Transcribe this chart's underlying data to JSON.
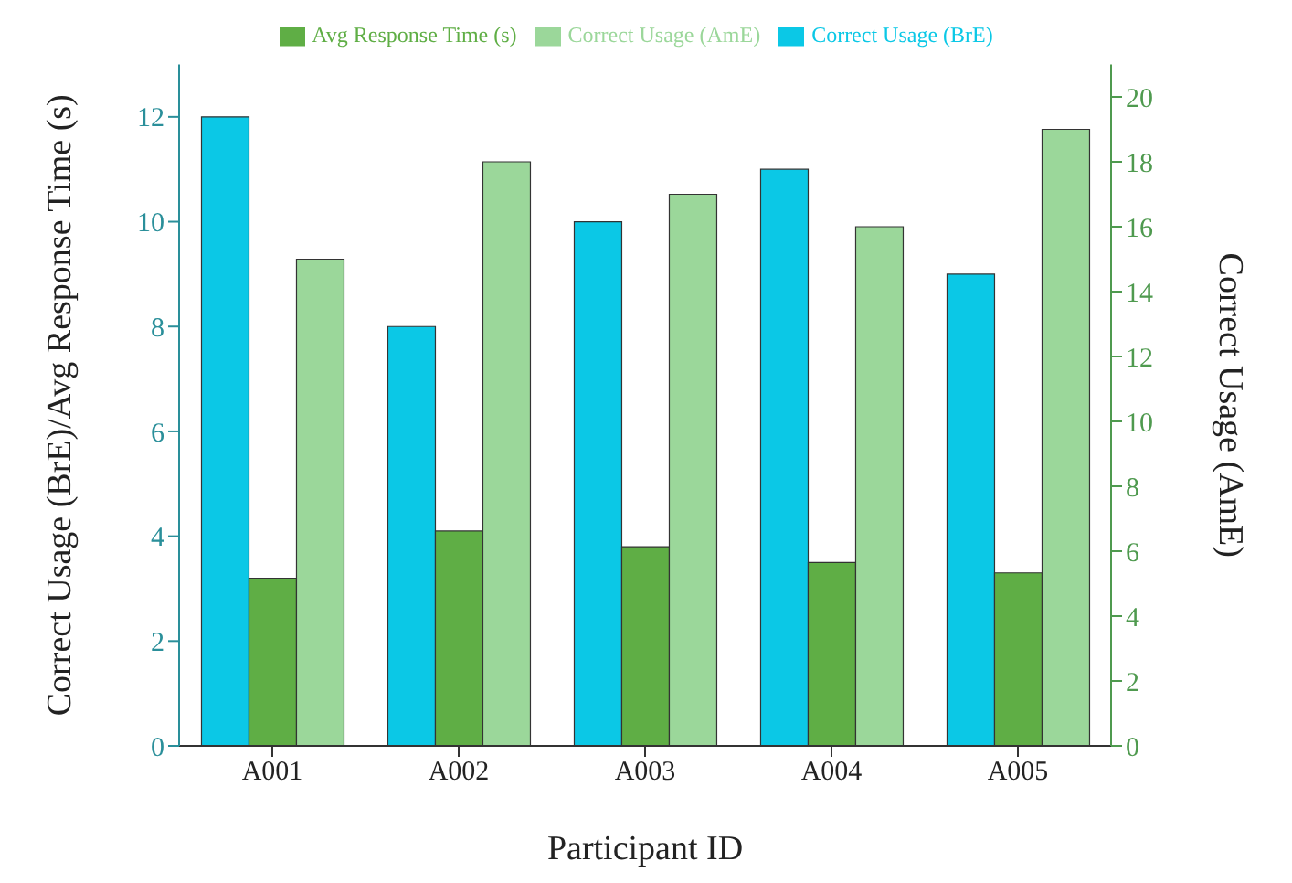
{
  "chart_data": {
    "type": "bar",
    "xlabel": "Participant ID",
    "ylabel": "Correct Usage (BrE)/Avg Response Time (s)",
    "y2label": "Correct Usage (AmE)",
    "categories": [
      "A001",
      "A002",
      "A003",
      "A004",
      "A005"
    ],
    "series": [
      {
        "name": "Correct Usage (BrE)",
        "color": "#0bc8e6",
        "values": [
          12,
          8,
          10,
          11,
          9
        ]
      },
      {
        "name": "Avg Response Time (s)",
        "color": "#5fae45",
        "values": [
          3.2,
          4.1,
          3.8,
          3.5,
          3.3
        ]
      },
      {
        "name": "Correct Usage (AmE)",
        "color": "#9bd79a",
        "axis": "y2",
        "values": [
          15,
          18,
          17,
          16,
          19
        ]
      }
    ],
    "ylim": [
      0,
      13
    ],
    "yticks": [
      0,
      2,
      4,
      6,
      8,
      10,
      12
    ],
    "y2lim": [
      0,
      21
    ],
    "y2ticks": [
      0,
      2,
      4,
      6,
      8,
      10,
      12,
      14,
      16,
      18,
      20
    ],
    "grid": false,
    "legend": "top"
  }
}
